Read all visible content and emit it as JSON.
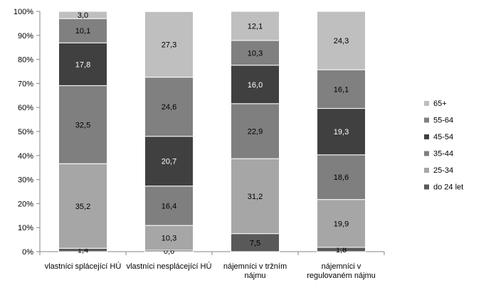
{
  "chart_data": {
    "type": "bar",
    "stacked": true,
    "normalized": true,
    "categories": [
      [
        "vlastníci splácející HÚ"
      ],
      [
        "vlastníci nesplácející HÚ"
      ],
      [
        "nájemníci v tržním",
        "nájmu"
      ],
      [
        "nájemníci v",
        "regulovaném nájmu"
      ]
    ],
    "series": [
      {
        "name": "do 24 let",
        "color": "#595959",
        "label_color": "#000000",
        "values": [
          1.4,
          0.6,
          7.5,
          1.8
        ]
      },
      {
        "name": "25-34",
        "color": "#a6a6a6",
        "label_color": "#000000",
        "values": [
          35.2,
          10.3,
          31.2,
          19.9
        ]
      },
      {
        "name": "35-44",
        "color": "#7f7f7f",
        "label_color": "#000000",
        "values": [
          32.5,
          16.4,
          22.9,
          18.6
        ]
      },
      {
        "name": "45-54",
        "color": "#404040",
        "label_color": "#ffffff",
        "values": [
          17.8,
          20.7,
          16.0,
          19.3
        ]
      },
      {
        "name": "55-64",
        "color": "#808080",
        "label_color": "#000000",
        "values": [
          10.1,
          24.6,
          10.3,
          16.1
        ]
      },
      {
        "name": "65+",
        "color": "#bfbfbf",
        "label_color": "#000000",
        "values": [
          3.0,
          27.3,
          12.1,
          24.3
        ]
      }
    ],
    "value_labels": [
      [
        "1,4",
        "35,2",
        "32,5",
        "17,8",
        "10,1",
        "3,0"
      ],
      [
        "0,6",
        "10,3",
        "16,4",
        "20,7",
        "24,6",
        "27,3"
      ],
      [
        "7,5",
        "31,2",
        "22,9",
        "16,0",
        "10,3",
        "12,1"
      ],
      [
        "1,8",
        "19,9",
        "18,6",
        "19,3",
        "16,1",
        "24,3"
      ]
    ],
    "y_ticks": [
      "0%",
      "10%",
      "20%",
      "30%",
      "40%",
      "50%",
      "60%",
      "70%",
      "80%",
      "90%",
      "100%"
    ],
    "ylim": [
      0,
      100
    ],
    "grid": false,
    "legend_position": "right",
    "legend_order": [
      "65+",
      "55-64",
      "45-54",
      "35-44",
      "25-34",
      "do 24 let"
    ],
    "title": "",
    "xlabel": "",
    "ylabel": ""
  }
}
